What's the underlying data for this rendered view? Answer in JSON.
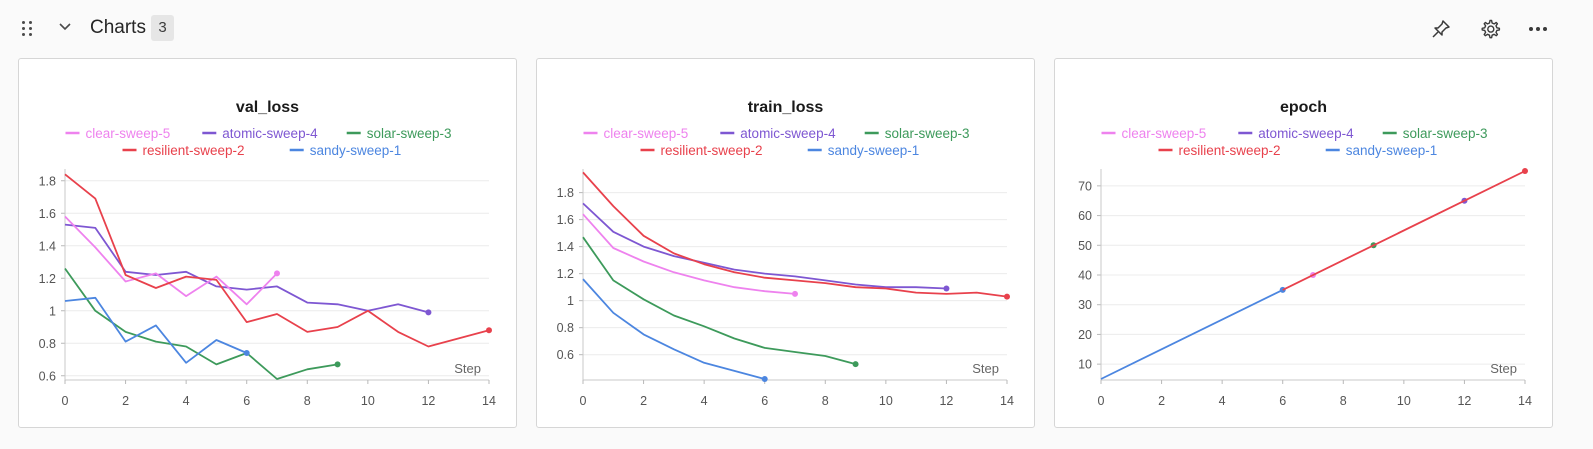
{
  "section": {
    "title": "Charts",
    "count": "3",
    "icons": [
      "drag-handle-icon",
      "chevron-down-icon",
      "pin-icon",
      "gear-icon",
      "more-icon"
    ]
  },
  "legend_colors": {
    "clear-sweep-5": "#ee82ee",
    "atomic-sweep-4": "#7e57d2",
    "solar-sweep-3": "#3d9a5b",
    "resilient-sweep-2": "#e8414c",
    "sandy-sweep-1": "#4c86e0"
  },
  "chart_data": [
    {
      "type": "line",
      "title": "val_loss",
      "xlabel": "Step",
      "ylabel": "",
      "xlim": [
        0,
        14
      ],
      "ylim": [
        0.58,
        1.86
      ],
      "xticks": [
        "0",
        "2",
        "4",
        "6",
        "8",
        "10",
        "12",
        "14"
      ],
      "yticks": [
        "0.6",
        "0.8",
        "1",
        "1.2",
        "1.4",
        "1.6",
        "1.8"
      ],
      "ytick_values": [
        0.6,
        0.8,
        1.0,
        1.2,
        1.4,
        1.6,
        1.8
      ],
      "grid": true,
      "legend": "top-center",
      "series": [
        {
          "name": "clear-sweep-5",
          "color": "#ee82ee",
          "x": [
            0,
            1,
            2,
            3,
            4,
            5,
            6,
            7
          ],
          "y": [
            1.58,
            1.39,
            1.18,
            1.23,
            1.09,
            1.21,
            1.04,
            1.23
          ]
        },
        {
          "name": "atomic-sweep-4",
          "color": "#7e57d2",
          "x": [
            0,
            1,
            2,
            3,
            4,
            5,
            6,
            7,
            8,
            9,
            10,
            11,
            12
          ],
          "y": [
            1.53,
            1.51,
            1.24,
            1.22,
            1.24,
            1.15,
            1.13,
            1.15,
            1.05,
            1.04,
            1.0,
            1.04,
            0.99
          ]
        },
        {
          "name": "solar-sweep-3",
          "color": "#3d9a5b",
          "x": [
            0,
            1,
            2,
            3,
            4,
            5,
            6,
            7,
            8,
            9
          ],
          "y": [
            1.26,
            1.0,
            0.87,
            0.81,
            0.78,
            0.67,
            0.74,
            0.58,
            0.64,
            0.67
          ]
        },
        {
          "name": "resilient-sweep-2",
          "color": "#e8414c",
          "x": [
            0,
            1,
            2,
            3,
            4,
            5,
            6,
            7,
            8,
            9,
            10,
            11,
            12,
            13,
            14
          ],
          "y": [
            1.84,
            1.69,
            1.22,
            1.14,
            1.21,
            1.19,
            0.93,
            0.98,
            0.87,
            0.9,
            1.0,
            0.87,
            0.78,
            0.83,
            0.88
          ]
        },
        {
          "name": "sandy-sweep-1",
          "color": "#4c86e0",
          "x": [
            0,
            1,
            2,
            3,
            4,
            5,
            6
          ],
          "y": [
            1.06,
            1.08,
            0.81,
            0.91,
            0.68,
            0.82,
            0.74
          ]
        }
      ]
    },
    {
      "type": "line",
      "title": "train_loss",
      "xlabel": "Step",
      "ylabel": "",
      "xlim": [
        0,
        14
      ],
      "ylim": [
        0.42,
        1.96
      ],
      "xticks": [
        "0",
        "2",
        "4",
        "6",
        "8",
        "10",
        "12",
        "14"
      ],
      "yticks": [
        "0.6",
        "0.8",
        "1",
        "1.2",
        "1.4",
        "1.6",
        "1.8"
      ],
      "ytick_values": [
        0.6,
        0.8,
        1.0,
        1.2,
        1.4,
        1.6,
        1.8
      ],
      "grid": true,
      "legend": "top-center",
      "series": [
        {
          "name": "clear-sweep-5",
          "color": "#ee82ee",
          "x": [
            0,
            1,
            2,
            3,
            4,
            5,
            6,
            7
          ],
          "y": [
            1.64,
            1.39,
            1.29,
            1.21,
            1.15,
            1.1,
            1.07,
            1.05
          ]
        },
        {
          "name": "atomic-sweep-4",
          "color": "#7e57d2",
          "x": [
            0,
            1,
            2,
            3,
            4,
            5,
            6,
            7,
            8,
            9,
            10,
            11,
            12
          ],
          "y": [
            1.72,
            1.51,
            1.4,
            1.33,
            1.28,
            1.23,
            1.2,
            1.18,
            1.15,
            1.12,
            1.1,
            1.1,
            1.09
          ]
        },
        {
          "name": "solar-sweep-3",
          "color": "#3d9a5b",
          "x": [
            0,
            1,
            2,
            3,
            4,
            5,
            6,
            7,
            8,
            9
          ],
          "y": [
            1.47,
            1.15,
            1.01,
            0.89,
            0.81,
            0.72,
            0.65,
            0.62,
            0.59,
            0.53
          ]
        },
        {
          "name": "resilient-sweep-2",
          "color": "#e8414c",
          "x": [
            0,
            1,
            2,
            3,
            4,
            5,
            6,
            7,
            8,
            9,
            10,
            11,
            12,
            13,
            14
          ],
          "y": [
            1.95,
            1.7,
            1.48,
            1.35,
            1.27,
            1.21,
            1.17,
            1.15,
            1.13,
            1.1,
            1.09,
            1.06,
            1.05,
            1.06,
            1.03
          ]
        },
        {
          "name": "sandy-sweep-1",
          "color": "#4c86e0",
          "x": [
            0,
            1,
            2,
            3,
            4,
            5,
            6
          ],
          "y": [
            1.16,
            0.91,
            0.75,
            0.64,
            0.54,
            0.48,
            0.42
          ]
        }
      ]
    },
    {
      "type": "line",
      "title": "epoch",
      "xlabel": "Step",
      "ylabel": "",
      "xlim": [
        0,
        14
      ],
      "ylim": [
        5,
        75
      ],
      "xticks": [
        "0",
        "2",
        "4",
        "6",
        "8",
        "10",
        "12",
        "14"
      ],
      "yticks": [
        "10",
        "20",
        "30",
        "40",
        "50",
        "60",
        "70"
      ],
      "ytick_values": [
        10,
        20,
        30,
        40,
        50,
        60,
        70
      ],
      "grid": true,
      "legend": "top-center",
      "series": [
        {
          "name": "clear-sweep-5",
          "color": "#ee82ee",
          "x": [
            7
          ],
          "y": [
            40
          ]
        },
        {
          "name": "atomic-sweep-4",
          "color": "#7e57d2",
          "x": [
            12
          ],
          "y": [
            65
          ]
        },
        {
          "name": "solar-sweep-3",
          "color": "#3d9a5b",
          "x": [
            9
          ],
          "y": [
            50
          ]
        },
        {
          "name": "resilient-sweep-2",
          "color": "#e8414c",
          "x": [
            6,
            14
          ],
          "y": [
            35,
            75
          ]
        },
        {
          "name": "sandy-sweep-1",
          "color": "#4c86e0",
          "x": [
            0,
            6
          ],
          "y": [
            5,
            35
          ]
        }
      ]
    }
  ]
}
